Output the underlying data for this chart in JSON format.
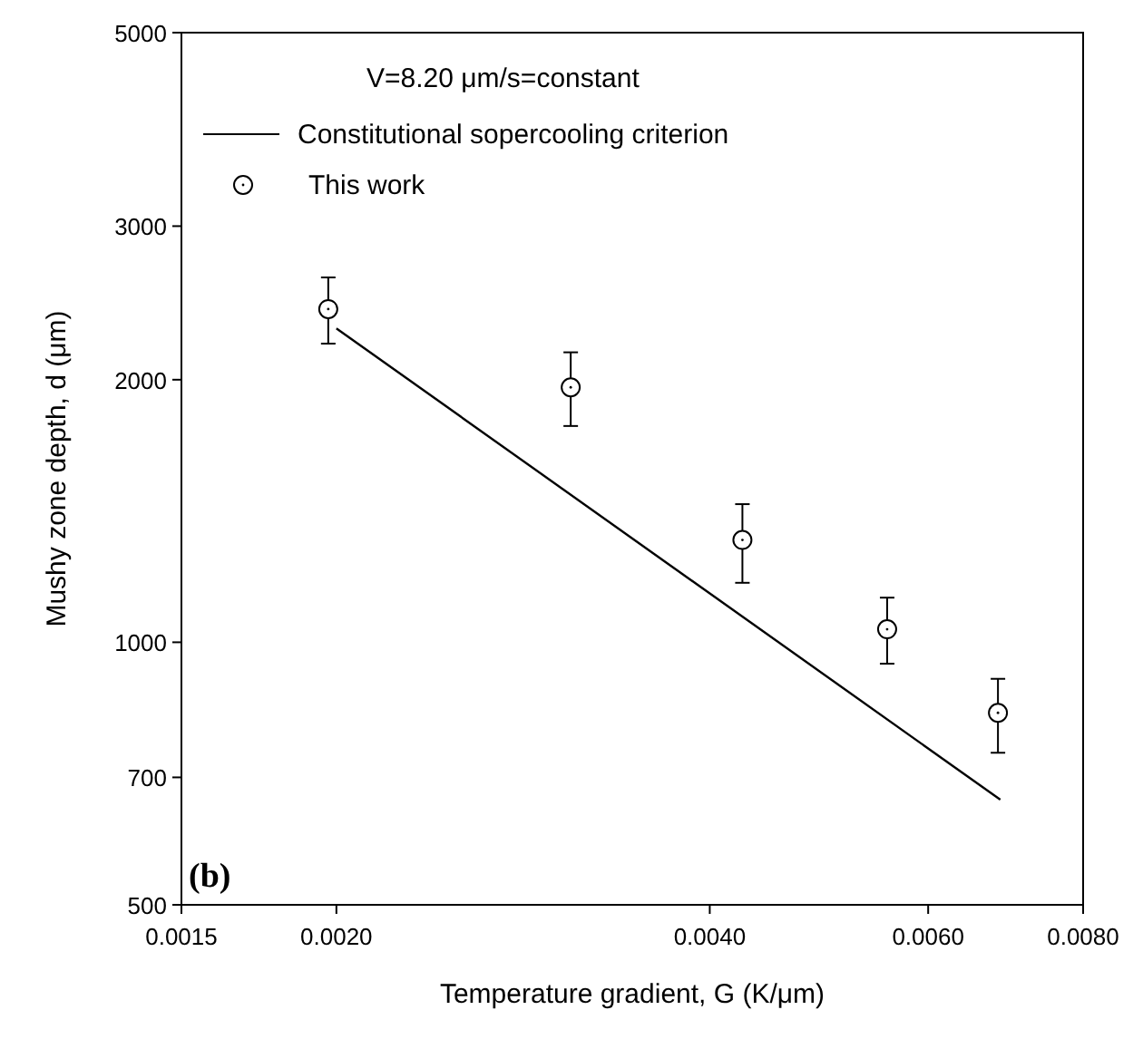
{
  "chart_data": {
    "type": "scatter",
    "xlabel": "Temperature gradient, G (K/μm)",
    "ylabel": "Mushy zone depth, d (μm)",
    "legend_title": "V=8.20 μm/s=constant",
    "legend": "top left",
    "log": "xy",
    "grid": false,
    "xlim": [
      0.0015,
      0.008
    ],
    "xticks": [
      {
        "value": 0.0015,
        "label": "0.0015"
      },
      {
        "value": 0.002,
        "label": "0.0020"
      },
      {
        "value": 0.004,
        "label": "0.0040"
      },
      {
        "value": 0.006,
        "label": "0.0060"
      },
      {
        "value": 0.008,
        "label": "0.0080"
      }
    ],
    "ylim": [
      500,
      5000
    ],
    "yticks": [
      500,
      700,
      1000,
      2000,
      3000,
      5000
    ],
    "annotations": [
      "(b)"
    ],
    "series": [
      {
        "name": "Constitutional sopercooling criterion",
        "type": "line",
        "color": "#000000",
        "marker": "none",
        "line_style": "solid",
        "x": [
          0.002,
          0.00686
        ],
        "values": [
          2290,
          660
        ]
      },
      {
        "name": "This work",
        "type": "scatter",
        "color": "#000000",
        "marker": "circle",
        "x": [
          0.00197,
          0.00309,
          0.00425,
          0.00556,
          0.00683
        ],
        "values": [
          2410,
          1960,
          1310,
          1035,
          830
        ],
        "errors": [
          [
            2200,
            2620
          ],
          [
            1770,
            2150
          ],
          [
            1170,
            1440
          ],
          [
            945,
            1125
          ],
          [
            747,
            908
          ]
        ]
      }
    ]
  }
}
